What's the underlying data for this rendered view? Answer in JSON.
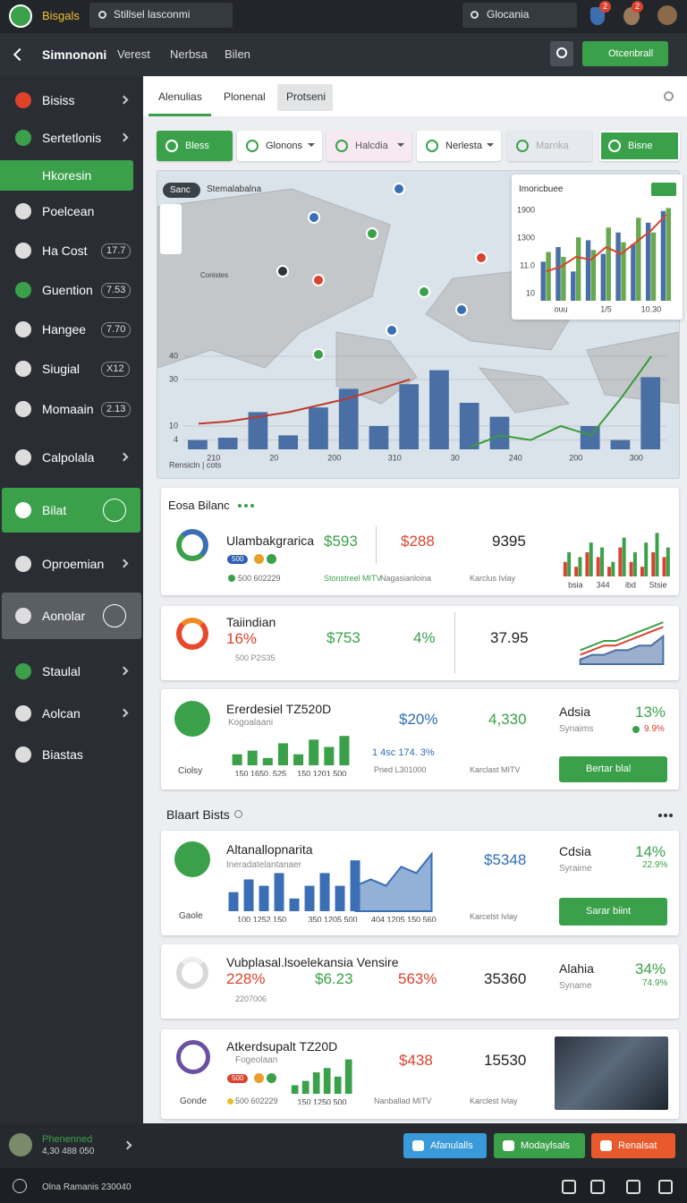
{
  "top_bar": {
    "brand": "Bisgals",
    "search": "Stillsel lasconmi",
    "search_right": "Glocania",
    "badges": [
      "2",
      "2"
    ]
  },
  "nav": {
    "title": "Simnononi",
    "links": [
      "Verest",
      "Nerbsa",
      "Bilen"
    ],
    "button": "Otcenbrall"
  },
  "sidebar": {
    "items": [
      {
        "label": "Bisiss"
      },
      {
        "label": "Sertetlonis"
      },
      {
        "label": "Hkoresin"
      },
      {
        "label": "Poelcean"
      },
      {
        "label": "Ha Cost",
        "badge": "17.7"
      },
      {
        "label": "Guention",
        "badge": "7.53"
      },
      {
        "label": "Hangee",
        "badge": "7.70"
      },
      {
        "label": "Siugial",
        "badge": "X12"
      },
      {
        "label": "Momaain",
        "badge": "2.13"
      },
      {
        "label": "Calpolala"
      },
      {
        "label": "Bilat"
      },
      {
        "label": "Oproemian"
      },
      {
        "label": "Aonolar"
      },
      {
        "label": "Staulal"
      },
      {
        "label": "Aolcan"
      },
      {
        "label": "Biastas"
      }
    ],
    "user": {
      "name": "Phenenned",
      "sub": "4,30 488 050"
    }
  },
  "tabs": [
    "Alenulias",
    "Plonenal",
    "Protseni"
  ],
  "filters": [
    "Bless",
    "Glonons",
    "Halcdia",
    "Nerlesta",
    "Marnka",
    "Bisne"
  ],
  "map": {
    "badge": "Sanc",
    "title": "Stemalabalna",
    "labels": [
      "Conistes"
    ]
  },
  "map_chart": {
    "x_title": "Rensicln | cots",
    "ylim": [
      0,
      45
    ],
    "yticks": [
      4,
      10,
      30,
      40
    ],
    "x_labels": [
      "210",
      "20",
      "200",
      "310",
      "30",
      "240",
      "200",
      "300"
    ],
    "series": [
      {
        "type": "bar",
        "color": "#4a6fa5",
        "values": [
          4,
          5,
          16,
          6,
          18,
          26,
          10,
          28,
          34,
          20,
          14,
          0,
          0,
          10,
          4,
          31
        ]
      },
      {
        "type": "line",
        "color": "#c0392b",
        "values": [
          11,
          12,
          14,
          16,
          19,
          22,
          26,
          30,
          null,
          null,
          null,
          null,
          null,
          null,
          null,
          null
        ]
      },
      {
        "type": "line",
        "color": "#3a9a3a",
        "values": [
          null,
          null,
          null,
          null,
          null,
          null,
          null,
          null,
          null,
          1,
          6,
          4,
          10,
          6,
          22,
          40
        ]
      }
    ]
  },
  "inset_chart": {
    "title": "Imoricbuee",
    "y_labels": [
      "1900",
      "1300",
      "11.0",
      "10"
    ],
    "x_labels": [
      "ouu",
      "1/5",
      "10.30"
    ],
    "ylim": [
      0,
      100
    ],
    "series": [
      {
        "type": "bar",
        "color": "#4a6fa5",
        "values": [
          40,
          55,
          30,
          62,
          48,
          70,
          58,
          80,
          92
        ]
      },
      {
        "type": "bar",
        "color": "#6aa84f",
        "values": [
          50,
          45,
          65,
          52,
          75,
          60,
          85,
          70,
          95
        ]
      },
      {
        "type": "line",
        "color": "#d9432f",
        "values": [
          30,
          35,
          45,
          42,
          55,
          48,
          60,
          72,
          88
        ]
      }
    ]
  },
  "cards": [
    {
      "header": "Eosa Bilanc",
      "name": "Ulambakgrarica",
      "pill": "500",
      "v1": "$593",
      "v2": "$288",
      "v3": "9395",
      "sub": "500 602229",
      "l1": "Stonstreel MITV",
      "l2": "Nagasianloina",
      "l3": "Karclus Ivlay",
      "chart": {
        "ylim": [
          0,
          10
        ],
        "x_labels": [
          "bsia",
          "344",
          "ibd",
          "Stsie"
        ],
        "series": [
          {
            "type": "bar",
            "color": "#d9432f",
            "values": [
              3,
              2,
              5,
              4,
              2,
              6,
              3,
              2,
              5,
              4
            ]
          },
          {
            "type": "bar",
            "color": "#3aa14a",
            "values": [
              5,
              4,
              7,
              6,
              3,
              8,
              5,
              7,
              9,
              6
            ]
          }
        ]
      }
    },
    {
      "name": "Taiindian",
      "pct": "16%",
      "v1": "$753",
      "v2": "4%",
      "v3": "37.95",
      "sub": "500 P2S35",
      "chart": {
        "ylim": [
          0,
          10
        ],
        "series": [
          {
            "type": "area",
            "color": "#4a6fa5",
            "values": [
              1,
              2,
              2,
              3,
              3,
              4,
              4,
              6
            ]
          },
          {
            "type": "line",
            "color": "#d9432f",
            "values": [
              2,
              3,
              4,
              4,
              5,
              6,
              7,
              8
            ]
          },
          {
            "type": "line",
            "color": "#3aa14a",
            "values": [
              3,
              4,
              5,
              5,
              6,
              7,
              8,
              9
            ]
          }
        ]
      }
    },
    {
      "name": "Ererdesiel TZ520D",
      "sub": "Kogoalaani",
      "icon_label": "Ciolsy",
      "v1": "$20%",
      "v1_sub": "1 4sc 174. 3%",
      "l1": "Pried L301000",
      "v2": "4,330",
      "l2": "Karclast MITV",
      "side_title": "Adsia",
      "side_sub": "Synaims",
      "side_pct": "13%",
      "side_pct2": "9.9%",
      "button": "Bertar blal",
      "chart": {
        "ylim": [
          0,
          10
        ],
        "x_labels": [
          "150 1650, 525",
          "150 1201 500"
        ],
        "series": [
          {
            "type": "bar",
            "color": "#3aa14a",
            "values": [
              3,
              4,
              2,
              6,
              3,
              7,
              5,
              8
            ]
          }
        ]
      }
    },
    {
      "name": "Altanallopnarita",
      "sub": "Ineradatelantanaer",
      "icon_label": "Gaole",
      "v1": "$5348",
      "l1": "Karcelst Ivlay",
      "side_title": "Cdsia",
      "side_sub": "Syraime",
      "side_pct": "14%",
      "side_pct2": "22.9%",
      "button": "Sarar biint",
      "chart": {
        "ylim": [
          0,
          10
        ],
        "x_labels": [
          "100 1252 150",
          "350 1205 500",
          "404 1205 150 560"
        ],
        "series": [
          {
            "type": "bar",
            "color": "#3a6fb5",
            "values": [
              3,
              5,
              4,
              6,
              2,
              4,
              6,
              4,
              8,
              null,
              null,
              null,
              null,
              null
            ]
          },
          {
            "type": "area",
            "color": "#3a6fb5",
            "values": [
              null,
              null,
              null,
              null,
              null,
              null,
              null,
              null,
              4,
              5,
              4,
              7,
              6,
              9
            ]
          }
        ]
      }
    },
    {
      "name": "Vubplasal.lsoelekansia Vensire",
      "pct": "228%",
      "v1": "$6.23",
      "v2": "563%",
      "v3": "35360",
      "sub": "2207006",
      "side_title": "Alahia",
      "side_sub": "Syname",
      "side_pct": "34%",
      "side_pct2": "74.9%"
    },
    {
      "name": "Atkerdsupalt TZ20D",
      "sub": "Fogeolaan",
      "pill": "500",
      "icon_label": "Gonde",
      "sub2": "500 602229",
      "v1": "$438",
      "v2": "15530",
      "l1": "Nanballad MITV",
      "l2": "Karclest Ivlay",
      "chart": {
        "ylim": [
          0,
          10
        ],
        "x_labels": [
          "150 1250 500"
        ],
        "series": [
          {
            "type": "bar",
            "color": "#3aa14a",
            "values": [
              2,
              3,
              5,
              6,
              4,
              8
            ]
          }
        ]
      }
    }
  ],
  "section": "Blaart Bists",
  "bottom_buttons": [
    "Afanulalls",
    "Modaylsals",
    "Renalsat"
  ],
  "footer": "Olna Ramanis 230040"
}
